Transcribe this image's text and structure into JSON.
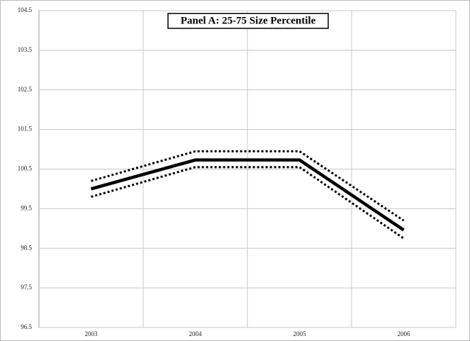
{
  "chart_data": {
    "type": "line",
    "title": "Panel A: 25-75 Size Percentile",
    "categories": [
      "2003",
      "2004",
      "2005",
      "2006"
    ],
    "series": [
      {
        "color": "#000000",
        "style": "solid",
        "values": [
          100.0,
          100.73,
          100.73,
          98.96
        ]
      },
      {
        "color": "#000000",
        "style": "dotted",
        "values": [
          100.2,
          100.95,
          100.95,
          99.2
        ]
      },
      {
        "color": "#000000",
        "style": "dotted",
        "values": [
          99.8,
          100.55,
          100.55,
          98.75
        ]
      }
    ],
    "ylim": [
      96.5,
      104.5
    ],
    "yticks": [
      96.5,
      97.5,
      98.5,
      99.5,
      100.5,
      101.5,
      102.5,
      103.5,
      104.5
    ],
    "grid": true
  }
}
